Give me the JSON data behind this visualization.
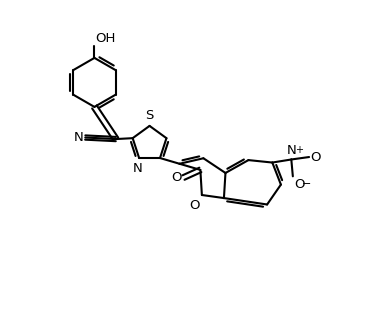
{
  "background_color": "#ffffff",
  "line_color": "#000000",
  "bond_lw": 1.5,
  "font_size": 9.5,
  "figsize": [
    3.91,
    3.21
  ],
  "dpi": 100,
  "xlim": [
    0.0,
    11.0
  ],
  "ylim": [
    -0.5,
    9.8
  ]
}
